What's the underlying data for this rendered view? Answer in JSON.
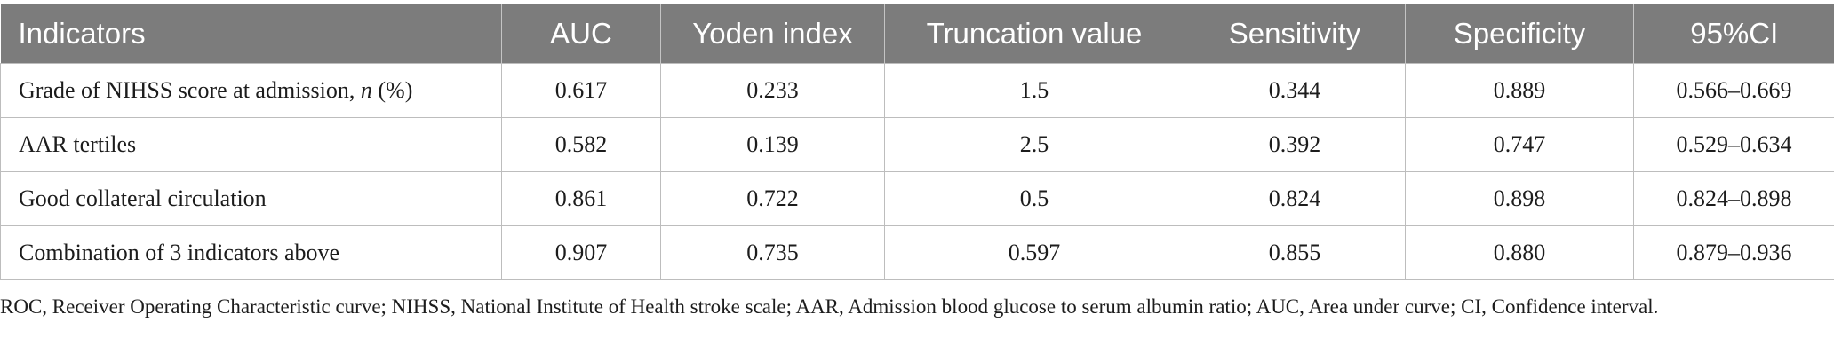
{
  "table": {
    "headers": [
      "Indicators",
      "AUC",
      "Yoden index",
      "Truncation value",
      "Sensitivity",
      "Specificity",
      "95%CI"
    ],
    "rows": [
      {
        "indicator_prefix": "Grade of NIHSS score at admission, ",
        "indicator_italic": "n",
        "indicator_suffix": " (%)",
        "auc": "0.617",
        "yoden": "0.233",
        "truncation": "1.5",
        "sensitivity": "0.344",
        "specificity": "0.889",
        "ci": "0.566–0.669"
      },
      {
        "indicator": "AAR tertiles",
        "auc": "0.582",
        "yoden": "0.139",
        "truncation": "2.5",
        "sensitivity": "0.392",
        "specificity": "0.747",
        "ci": "0.529–0.634"
      },
      {
        "indicator": "Good collateral circulation",
        "auc": "0.861",
        "yoden": "0.722",
        "truncation": "0.5",
        "sensitivity": "0.824",
        "specificity": "0.898",
        "ci": "0.824–0.898"
      },
      {
        "indicator": "Combination of 3 indicators above",
        "auc": "0.907",
        "yoden": "0.735",
        "truncation": "0.597",
        "sensitivity": "0.855",
        "specificity": "0.880",
        "ci": "0.879–0.936"
      }
    ]
  },
  "footnote": "ROC, Receiver Operating Characteristic curve; NIHSS, National Institute of Health stroke scale; AAR, Admission blood glucose to serum albumin ratio; AUC, Area under curve; CI, Confidence interval."
}
